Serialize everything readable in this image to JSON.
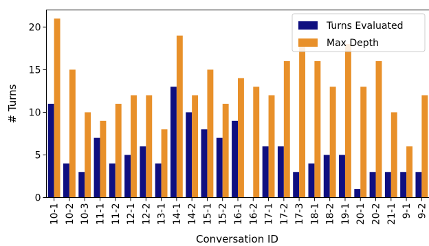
{
  "chart_data": {
    "type": "bar",
    "title": "",
    "xlabel": "Conversation ID",
    "ylabel": "# Turns",
    "ylim": [
      0,
      22
    ],
    "yticks": [
      0,
      5,
      10,
      15,
      20
    ],
    "grid": false,
    "legend_position": "top-right",
    "categories": [
      "10-1",
      "10-2",
      "10-3",
      "11-1",
      "11-2",
      "12-1",
      "12-2",
      "13-1",
      "14-1",
      "14-2",
      "15-1",
      "15-2",
      "16-1",
      "16-2",
      "17-1",
      "17-2",
      "17-3",
      "18-1",
      "18-2",
      "19-1",
      "20-1",
      "20-2",
      "21-1",
      "9-1",
      "9-2"
    ],
    "series": [
      {
        "name": "Turns Evaluated",
        "color": "#0f0f80",
        "values": [
          11,
          4,
          3,
          7,
          4,
          5,
          6,
          4,
          13,
          10,
          8,
          7,
          9,
          0,
          6,
          6,
          3,
          4,
          5,
          5,
          1,
          3,
          3,
          3,
          3
        ]
      },
      {
        "name": "Max Depth",
        "color": "#e8902a",
        "values": [
          21,
          15,
          10,
          9,
          11,
          12,
          12,
          8,
          19,
          12,
          15,
          11,
          14,
          13,
          12,
          16,
          18,
          16,
          13,
          18,
          13,
          16,
          10,
          6,
          12
        ]
      }
    ]
  }
}
